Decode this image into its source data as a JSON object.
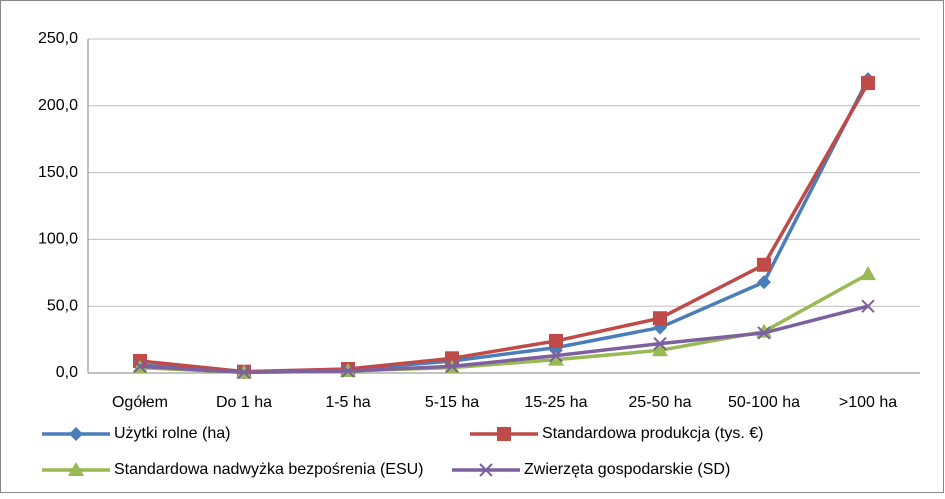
{
  "chart_data": {
    "type": "line",
    "categories": [
      "Ogółem",
      "Do 1 ha",
      "1-5 ha",
      "5-15 ha",
      "15-25 ha",
      "25-50 ha",
      "50-100 ha",
      ">100 ha"
    ],
    "series": [
      {
        "name": "Użytki rolne (ha)",
        "color": "#4a7ebb",
        "marker": "diamond",
        "values": [
          6,
          0.5,
          2.5,
          9,
          19,
          34,
          68,
          220
        ]
      },
      {
        "name": "Standardowa produkcja  (tys. €)",
        "color": "#be4b48",
        "marker": "square",
        "values": [
          9,
          1,
          3,
          11,
          24,
          41,
          81,
          217
        ]
      },
      {
        "name": "Standardowa nadwyżka bezpośrenia (ESU)",
        "color": "#98b954",
        "marker": "triangle",
        "values": [
          4,
          0.5,
          1.5,
          4,
          10,
          17,
          31,
          74
        ]
      },
      {
        "name": "Zwierzęta gospodarskie (SD)",
        "color": "#7d60a0",
        "marker": "x",
        "values": [
          5,
          0.5,
          1.5,
          5,
          13,
          22,
          30,
          50
        ]
      }
    ],
    "ylim": [
      0,
      250
    ],
    "yticks": [
      {
        "value": 0,
        "label": "0,0"
      },
      {
        "value": 50,
        "label": "50,0"
      },
      {
        "value": 100,
        "label": "100,0"
      },
      {
        "value": 150,
        "label": "150,0"
      },
      {
        "value": 200,
        "label": "200,0"
      },
      {
        "value": 250,
        "label": "250,0"
      }
    ],
    "grid": true,
    "legend": "bottom"
  }
}
